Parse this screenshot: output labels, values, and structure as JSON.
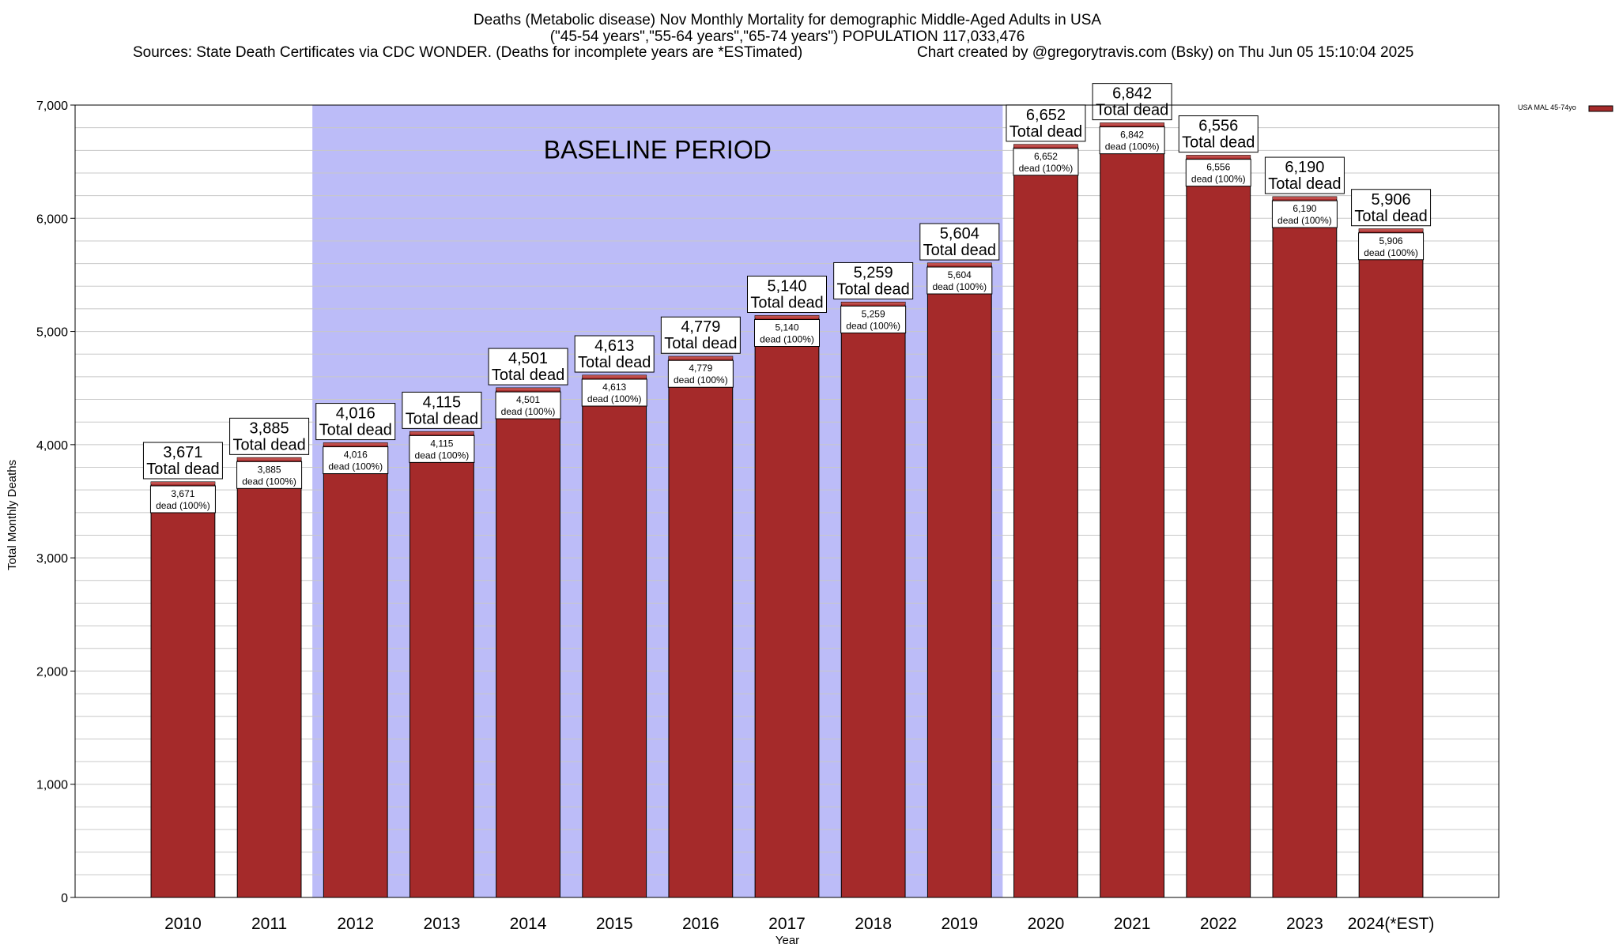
{
  "header": {
    "line1": "Deaths (Metabolic disease) Nov Monthly Mortality for demographic Middle-Aged Adults in USA",
    "line2": "(\"45-54 years\",\"55-64 years\",\"65-74 years\") POPULATION 117,033,476",
    "line3_left": "Sources: State Death Certificates via CDC WONDER. (Deaths for incomplete years are *ESTimated)",
    "line3_right": "Chart created by @gregorytravis.com (Bsky) on Thu Jun 05 15:10:04 2025"
  },
  "colors": {
    "bar": "#a52a2a",
    "bar_top": "#c0504d",
    "baseline_band": "#bcbcf8",
    "grid": "#c8c8c8"
  },
  "chart_data": {
    "type": "bar",
    "xlabel": "Year",
    "ylabel": "Total Monthly Deaths",
    "ylim": [
      0,
      7000
    ],
    "yticks": [
      0,
      1000,
      2000,
      3000,
      4000,
      5000,
      6000,
      7000
    ],
    "ytick_labels": [
      "0",
      "1,000",
      "2,000",
      "3,000",
      "4,000",
      "5,000",
      "6,000",
      "7,000"
    ],
    "grid": true,
    "legend_position": "top-right",
    "categories": [
      "2010",
      "2011",
      "2012",
      "2013",
      "2014",
      "2015",
      "2016",
      "2017",
      "2018",
      "2019",
      "2020",
      "2021",
      "2022",
      "2023",
      "2024(*EST)"
    ],
    "series": [
      {
        "name": "USA MAL 45-74yo",
        "values": [
          3671,
          3885,
          4016,
          4115,
          4501,
          4613,
          4779,
          5140,
          5259,
          5604,
          6652,
          6842,
          6556,
          6190,
          5906
        ]
      }
    ],
    "value_labels": [
      "3,671",
      "3,885",
      "4,016",
      "4,115",
      "4,501",
      "4,613",
      "4,779",
      "5,140",
      "5,259",
      "5,604",
      "6,652",
      "6,842",
      "6,556",
      "6,190",
      "5,906"
    ],
    "total_label": "Total dead",
    "inner_label": "dead (100%)",
    "annotations": [
      {
        "text": "BASELINE PERIOD",
        "x_start": "2012",
        "x_end": "2019"
      }
    ]
  }
}
